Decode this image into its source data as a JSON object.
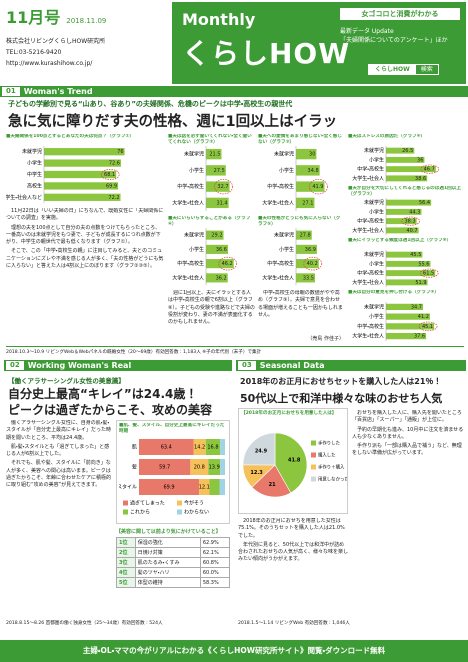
{
  "header": {
    "issue": "11月号",
    "date": "2018.11.09",
    "company": "株式会社リビングくらしHOW研究所",
    "tel": "TEL:03-5216-9420",
    "url": "http://www.kurashihow.co.jp/",
    "monthly": "Monthly",
    "brand": "くらしHOW",
    "tagline": "女ゴコロと消費がわかる",
    "update": "最新データ Update",
    "update_sub": "「夫婦関係についてのアンケート」ほか",
    "search_brand": "くらしHOW",
    "search": "検索"
  },
  "s1": {
    "num": "01",
    "label": "Woman's Trend",
    "subtitle": "子どもの学齢別で見る“山あり、谷あり”の夫婦関係、危機のピークは中学・高校生の親世代",
    "headline": "急に気に障りだす夫の性格、週に1回以上はイラッ",
    "charts": [
      {
        "title": "■夫婦関係を100点とするとあなたの夫は何点？（グラフ①）",
        "categories": [
          "未就学児",
          "小学生",
          "中学生",
          "高校生",
          "大学生・社会人など"
        ],
        "values": [
          76.0,
          72.6,
          68.1,
          69.9,
          72.2
        ],
        "xlim": [
          0,
          100
        ],
        "color": "#8cc63f",
        "highlight": 2
      },
      {
        "title": "■夫は話を必ず聞いてくれない・全く聞いてくれない（グラフ②）",
        "categories": [
          "未就学児",
          "小学生",
          "中学・高校生",
          "大学生・社会人"
        ],
        "values": [
          21.5,
          27.5,
          32.7,
          31.4
        ],
        "xlim": [
          0,
          50
        ],
        "color": "#8cc63f",
        "highlight": 2
      },
      {
        "title": "■夫への愛情をあまり感じない・全く感じない（グラフ③）",
        "categories": [
          "未就学児",
          "小学生",
          "中学・高校生",
          "大学生・社会人"
        ],
        "values": [
          30.0,
          34.8,
          41.9,
          27.1
        ],
        "xlim": [
          0,
          50
        ],
        "color": "#8cc63f",
        "highlight": 2
      },
      {
        "title": "■夫にいらいらすることがある（グラフ④）",
        "categories": [
          "未就学児",
          "小学生",
          "中学・高校生",
          "大学生・社会人"
        ],
        "values": [
          29.2,
          36.6,
          46.2,
          36.2
        ],
        "xlim": [
          0,
          60
        ],
        "color": "#8cc63f",
        "highlight": 2
      },
      {
        "title": "■夫の性格がどうにも気に入らない（グラフ⑤）",
        "categories": [
          "未就学児",
          "小学生",
          "中学・高校生",
          "大学生・社会人"
        ],
        "values": [
          27.8,
          36.9,
          40.2,
          33.5
        ],
        "xlim": [
          0,
          60
        ],
        "color": "#8cc63f",
        "highlight": 2
      },
      {
        "title": "■夫はストレスの原因だ（グラフ⑥）",
        "categories": [
          "未就学児",
          "小学生",
          "中学・高校生",
          "大学生・社会人"
        ],
        "values": [
          26.5,
          36.0,
          46.7,
          38.6
        ],
        "xlim": [
          0,
          60
        ],
        "color": "#8cc63f",
        "highlight": 2
      },
      {
        "title": "■夫が自分を大切にしてくれると感じるのは週1回以上（グラフ⑦）",
        "categories": [
          "未就学児",
          "小学生",
          "中学・高校生",
          "大学生・社会人"
        ],
        "values": [
          56.4,
          44.3,
          38.3,
          40.7
        ],
        "xlim": [
          0,
          80
        ],
        "color": "#8cc63f",
        "highlight": 2
      },
      {
        "title": "■夫にイラッとする頻度は週1回以上（グラフ⑧）",
        "categories": [
          "未就学児",
          "小学生",
          "中学・高校生",
          "大学生・社会人"
        ],
        "values": [
          45.5,
          55.6,
          61.5,
          51.9
        ],
        "xlim": [
          0,
          80
        ],
        "color": "#8cc63f",
        "highlight": 2
      },
      {
        "title": "■夫は自分の意見を押し付ける（グラフ⑨）",
        "categories": [
          "未就学児",
          "小学生",
          "中学・高校生",
          "大学生・社会人"
        ],
        "values": [
          34.7,
          41.2,
          45.1,
          37.6
        ],
        "xlim": [
          0,
          60
        ],
        "color": "#8cc63f",
        "highlight": 2
      }
    ],
    "body_left": [
      "11月22日は「いい夫婦の日」にちなんで、既婚女性に「夫婦関係についての調査」を実施。",
      "理想の夫を100点として自分の夫の点数をつけてもらったところ、一番高いのは未就学児をもつ妻で、子どもが成長するにつれ点数が下がり、中学生の親世代で最も低くなります（グラフ①）。",
      "そこで、この「中学・高校生の親」に注目してみると、夫とのコミュニケーションにズレや不満を感じる人が多く、「夫の性格がどうにも気に入らない」と答えた人は4割以上にのぼります（グラフ②③⑤）。"
    ],
    "body_mid": [
      "週に1回以上、夫にイラッとする人は中学・高校生の親で6割以上（グラフ⑧）。子どもの受験や進路などで夫婦の役割が変わり、妻の不満が表面化するのかもしれません。"
    ],
    "body_right": [
      "中学・高校生の母親の数値がやや高め（グラフ⑨）。夫婦で意見を合わせる場面が増えることも一因かもしれません。"
    ],
    "signature": "（売島 作佳子）",
    "note": "2018.10.3～10.9 リビングWeb＆Webパネルの既婚女性（20～69歳）有効回答数：1,183人 ※子の年代別（末子）で集計"
  },
  "s2": {
    "num": "02",
    "label": "Working Woman's Real",
    "kicker": "【働くアラサーシングル女性の美意識】",
    "headline1": "自分史上最高“キレイ”は24.4歳！",
    "headline2": "ピークは過ぎたからこそ、攻めの美容",
    "body": [
      "働くアラサーシングル女性に、自身の肌・髪・スタイルが「自分史上最高にキレイ」だった時期を聞いたところ、平均は24.4歳。",
      "肌・髪・スタイルとも「過ぎてしまった」と感じる人が6割以上でした。",
      "それでも、肌や髪、スタイルに「前向き」な人が多く、美容への関心は高いまま。ピークは過ぎたからこそ、年齢に合わせたケアに積極的に取り組む“攻めの美容”が見えてきます。"
    ],
    "chart": {
      "title": "■肌、髪、スタイル、自分史上最高にキレイだった時期",
      "categories": [
        "肌",
        "髪",
        "スタイル"
      ],
      "series": [
        {
          "name": "過ぎてしまった",
          "color": "#e8786a",
          "values": [
            63.4,
            59.7,
            69.9
          ]
        },
        {
          "name": "今がそう",
          "color": "#f6c05a",
          "values": [
            14.2,
            20.8,
            12.1
          ]
        },
        {
          "name": "これから",
          "color": "#8cc63f",
          "values": [
            16.8,
            13.9,
            11.6
          ]
        },
        {
          "name": "わからない",
          "color": "#9fd3e6",
          "values": [
            5.6,
            5.6,
            6.4
          ]
        }
      ],
      "xlim": [
        0,
        100
      ]
    },
    "ranking": {
      "title": "【美容に関して以前より気にかけていること】",
      "rows": [
        [
          "1位",
          "保湿の強化",
          "62.9%"
        ],
        [
          "2位",
          "日焼け対策",
          "62.1%"
        ],
        [
          "3位",
          "肌のたるみ・くすみ",
          "60.8%"
        ],
        [
          "4位",
          "髪のツヤ・ハリ",
          "60.0%"
        ],
        [
          "5位",
          "体型の維持",
          "58.3%"
        ]
      ]
    },
    "note": "2018.8.15～8.26 首都圏の働く独身女性（25～34歳）有効回答数：524人"
  },
  "s3": {
    "num": "03",
    "label": "Seasonal Data",
    "headline1": "2018年のお正月におせちセットを購入した人は21％！",
    "headline2": "50代以上で和洋中様々な味のおせち人気",
    "chart": {
      "title": "【2018年のお正月におせちを用意した人は】",
      "categories": [
        "手作りした",
        "購入した",
        "手作り＋購入",
        "用意しなかった"
      ],
      "values": [
        41.8,
        21.0,
        12.3,
        24.9
      ],
      "colors": [
        "#8cc63f",
        "#e8786a",
        "#f6c05a",
        "#cfd8dc"
      ]
    },
    "body_left": [
      "2018年のお正月におせちを用意した女性は75.1%。そのうちセットを購入した人は21.0%でした。",
      "年代別に見ると、50代以上では和洋中が詰め合わされたおせちの人気が高く、様々な味を楽しみたい傾向がうかがえます。"
    ],
    "body_right": [
      "おせちを購入した人に、購入先を聞いたところ「百貨店」「スーパー」「通販」が上位に。",
      "予約の早期化も進み、10月中に注文を済ませる人も少なくありません。",
      "手作り派も「一部は購入品で補う」など、無理をしない準備が広がっています。"
    ],
    "note": "2018.1.5～1.14 リビングWeb 有効回答数：1,046人"
  },
  "footer": {
    "text": "主婦・OL・ママの今がリアルにわかる《くらしHOW研究所サイト》閲覧・ダウンロード無料"
  }
}
